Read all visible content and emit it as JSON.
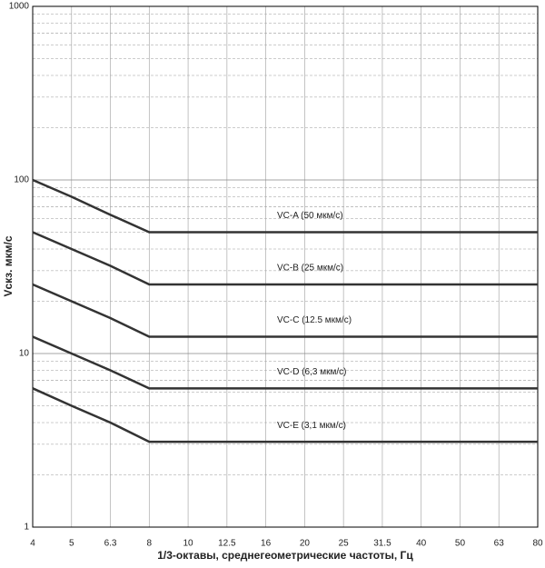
{
  "chart_data": {
    "type": "line",
    "ylabel": "Vскз. мкм/с",
    "xlabel": "1/3-октавы, среднегеометрические частоты, Гц",
    "categories": [
      "4",
      "5",
      "6.3",
      "8",
      "10",
      "12.5",
      "16",
      "20",
      "25",
      "31.5",
      "40",
      "50",
      "63",
      "80"
    ],
    "series": [
      {
        "name": "VC-A (50  мкм/с)",
        "color": "#333333",
        "values": [
          100,
          80,
          63,
          50,
          50,
          50,
          50,
          50,
          50,
          50,
          50,
          50,
          50,
          50
        ]
      },
      {
        "name": "VC-B (25  мкм/с)",
        "color": "#333333",
        "values": [
          50,
          40,
          32,
          25,
          25,
          25,
          25,
          25,
          25,
          25,
          25,
          25,
          25,
          25
        ]
      },
      {
        "name": "VC-C (12.5  мкм/с)",
        "color": "#333333",
        "values": [
          25,
          20,
          16,
          12.5,
          12.5,
          12.5,
          12.5,
          12.5,
          12.5,
          12.5,
          12.5,
          12.5,
          12.5,
          12.5
        ]
      },
      {
        "name": "VC-D (6,3 мкм/с)",
        "color": "#333333",
        "values": [
          12.5,
          10,
          8,
          6.3,
          6.3,
          6.3,
          6.3,
          6.3,
          6.3,
          6.3,
          6.3,
          6.3,
          6.3,
          6.3
        ]
      },
      {
        "name": "VC-E (3,1 мкм/с)",
        "color": "#333333",
        "values": [
          6.3,
          5,
          4,
          3.1,
          3.1,
          3.1,
          3.1,
          3.1,
          3.1,
          3.1,
          3.1,
          3.1,
          3.1,
          3.1
        ]
      }
    ],
    "ylim": [
      1,
      1000
    ],
    "yticks": [
      1,
      10,
      100,
      1000
    ],
    "log_y": true,
    "minor_yticks": [
      2,
      3,
      4,
      5,
      6,
      7,
      8,
      9,
      20,
      30,
      40,
      50,
      60,
      70,
      80,
      90,
      200,
      300,
      400,
      500,
      600,
      700,
      800,
      900
    ],
    "grid": true
  }
}
